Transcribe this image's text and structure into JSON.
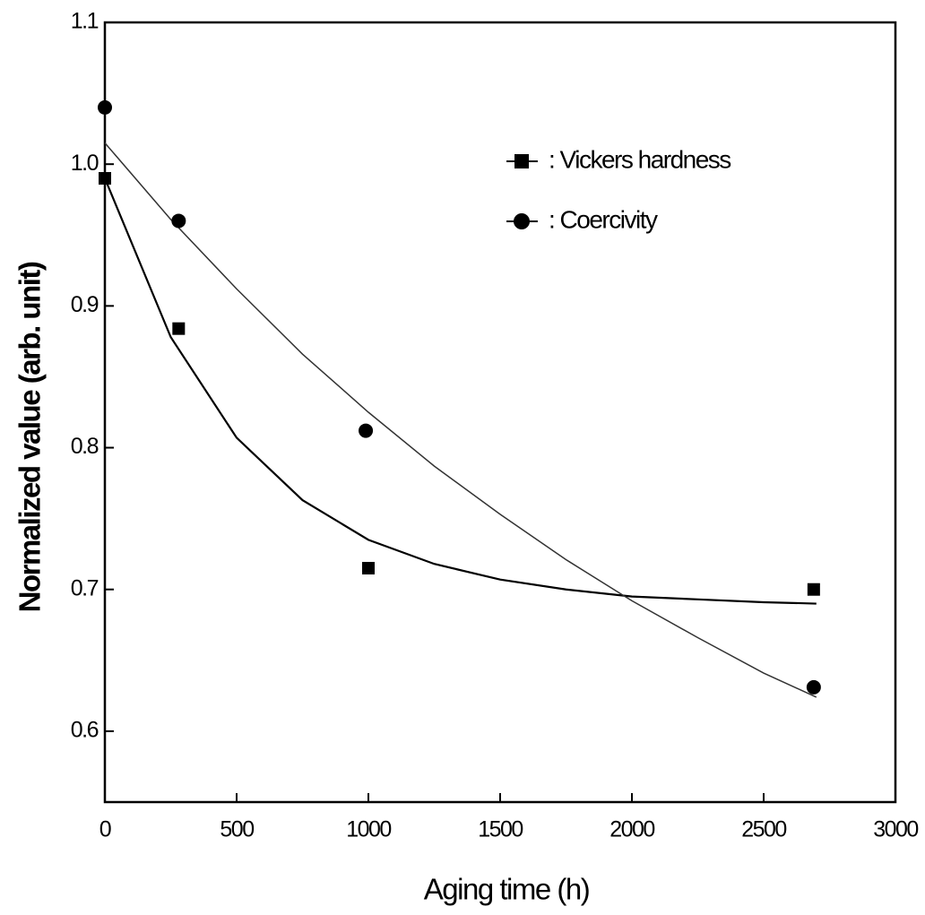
{
  "chart_data": {
    "type": "scatter",
    "x_label": "Aging time (h)",
    "y_label": "Normalized value (arb. unit)",
    "xlim": [
      0,
      3000
    ],
    "xticks": [
      0,
      500,
      1000,
      1500,
      2000,
      2500,
      3000
    ],
    "ylim": [
      0.55,
      1.1
    ],
    "yticks": [
      0.6,
      0.7,
      0.8,
      0.9,
      {
        "value": 1,
        "label": "1.0"
      },
      1.1
    ],
    "series": [
      {
        "name": ": Vickers hardness",
        "color": "#000000",
        "marker": "square",
        "x": [
          0,
          280,
          1000,
          2690
        ],
        "values": [
          0.99,
          0.884,
          0.715,
          0.7
        ]
      },
      {
        "name": ": Coercivity",
        "color": "#000000",
        "marker": "circle",
        "x": [
          0,
          280,
          990,
          2690
        ],
        "values": [
          1.04,
          0.96,
          0.812,
          0.631
        ]
      }
    ],
    "fits": [
      {
        "color": "#000000",
        "dash": "solid",
        "x": [
          0,
          250,
          500,
          750,
          1000,
          1250,
          1500,
          1750,
          2000,
          2250,
          2500,
          2700
        ],
        "values": [
          0.99,
          0.878,
          0.807,
          0.763,
          0.735,
          0.718,
          0.707,
          0.7,
          0.695,
          0.693,
          0.691,
          0.69
        ]
      },
      {
        "color": "#333333",
        "dash": "thin",
        "x": [
          0,
          250,
          500,
          750,
          1000,
          1250,
          1500,
          1750,
          2000,
          2250,
          2500,
          2700
        ],
        "values": [
          1.015,
          0.961,
          0.912,
          0.866,
          0.825,
          0.787,
          0.753,
          0.721,
          0.692,
          0.666,
          0.641,
          0.624
        ]
      }
    ]
  }
}
